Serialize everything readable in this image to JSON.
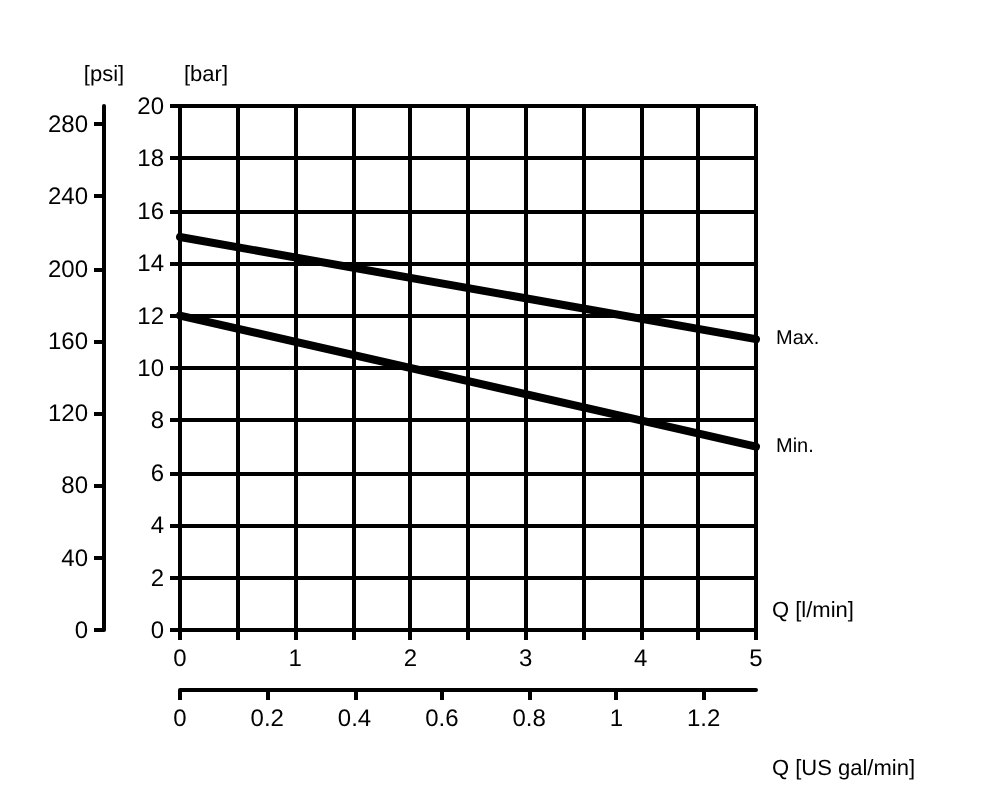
{
  "chart_data": {
    "type": "line",
    "xlabel": "Q [l/min]",
    "x2label": "Q [US gal/min]",
    "ylabel": "[bar]",
    "y2label": "[psi]",
    "x": [
      0,
      5
    ],
    "series": [
      {
        "name": "Max.",
        "color": "#000000",
        "values": [
          15,
          11.1
        ]
      },
      {
        "name": "Min.",
        "color": "#000000",
        "values": [
          12,
          7
        ]
      }
    ],
    "xlim": [
      0,
      5
    ],
    "xticks": [
      0,
      {
        "value": 0.5,
        "label": null
      },
      1,
      {
        "value": 1.5,
        "label": null
      },
      2,
      {
        "value": 2.5,
        "label": null
      },
      3,
      {
        "value": 3.5,
        "label": null
      },
      4,
      {
        "value": 4.5,
        "label": null
      },
      5
    ],
    "x2lim": [
      0,
      1.32
    ],
    "x2ticks": [
      0,
      0.2,
      0.4,
      0.6,
      0.8,
      1.0,
      1.2
    ],
    "ylim": [
      0,
      20
    ],
    "yticks": [
      0,
      2,
      4,
      6,
      8,
      10,
      12,
      14,
      16,
      18,
      20
    ],
    "y2lim": [
      0,
      290
    ],
    "y2ticks": [
      0,
      40,
      80,
      120,
      160,
      200,
      240,
      280
    ],
    "grid": true,
    "legend": false,
    "marker": "none",
    "line_style": "solid"
  }
}
